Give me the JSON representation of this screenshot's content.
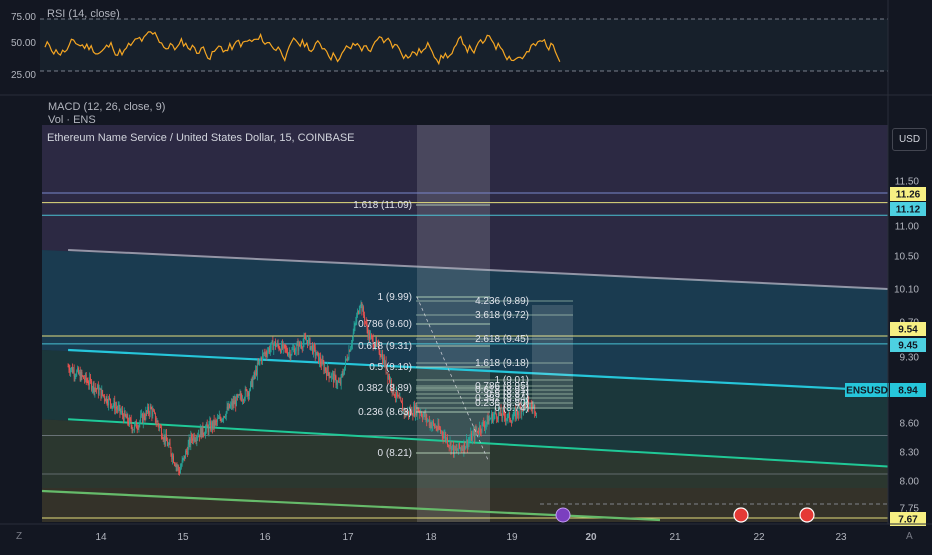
{
  "rsi_pane": {
    "label": "RSI (14, close)",
    "ticks": [
      "75.00",
      "50.00",
      "25.00"
    ]
  },
  "indicators": {
    "macd_label": "MACD (12, 26, close, 9)",
    "vol_label": "Vol · ENS"
  },
  "main_pane": {
    "title": "Ethereum Name Service / United States Dollar, 15, COINBASE",
    "currency_button": "USD",
    "corner_left": "Z",
    "corner_right": "A"
  },
  "price_axis": {
    "ticks": [
      "11.50",
      "11.00",
      "10.50",
      "10.10",
      "9.70",
      "9.30",
      "8.60",
      "8.30",
      "8.00",
      "7.75"
    ],
    "tags": [
      {
        "text": "11.26",
        "bg": "#f7f083",
        "fg": "#131722"
      },
      {
        "text": "11.12",
        "bg": "#4dd0e1",
        "fg": "#131722"
      },
      {
        "text": "9.54",
        "bg": "#f7f083",
        "fg": "#131722"
      },
      {
        "text": "9.45",
        "bg": "#4dd0e1",
        "fg": "#131722"
      },
      {
        "text": "8.94",
        "bg": "#26c6da",
        "fg": "#131722"
      },
      {
        "text": "7.67",
        "bg": "#f7f083",
        "fg": "#131722"
      }
    ],
    "symbol_tag": "ENSUSD"
  },
  "time_axis": {
    "ticks": [
      "14",
      "15",
      "16",
      "17",
      "18",
      "19",
      "20",
      "21",
      "22",
      "23"
    ]
  },
  "fib_retracement": [
    "1.618 (11.09)",
    "1 (9.99)",
    "0.786 (9.60)",
    "0.618 (9.31)",
    "0.5 (9.10)",
    "0.382 (8.89)",
    "0.236 (8.63)",
    "0 (8.21)"
  ],
  "fib_extension": [
    "4.236 (9.89)",
    "3.618 (9.72)",
    "2.618 (9.45)",
    "1.618 (9.18)",
    "1 (9.01)",
    "0.786 (8.95)",
    "0.618 (8.91)",
    "0.5 (8.87)",
    "0.382 (8.84)",
    "0.236 (8.80)",
    "0 (8.74)"
  ],
  "colors": {
    "background": "#131722",
    "up_candle": "#26a69a",
    "down_candle": "#ef5350",
    "rsi_line": "#f5a623",
    "channel_cyan": "#26c6da",
    "channel_green": "#20c997",
    "fib_line": "#c8e6c9",
    "yellow_level": "#f7f083"
  },
  "chart_data": {
    "type": "candlestick",
    "title": "Ethereum Name Service / United States Dollar, 15, COINBASE",
    "symbol": "ENSUSD",
    "last_price": 8.94,
    "x_ticks": [
      "14",
      "15",
      "16",
      "17",
      "18",
      "19",
      "20",
      "21",
      "22",
      "23"
    ],
    "y_ticks": [
      11.5,
      11.0,
      10.5,
      10.1,
      9.7,
      9.3,
      8.6,
      8.3,
      8.0,
      7.75
    ],
    "ylim": [
      7.65,
      12.5
    ],
    "price_path": [
      {
        "day": 13.6,
        "price": 9.2
      },
      {
        "day": 13.9,
        "price": 9.0
      },
      {
        "day": 14.2,
        "price": 8.75
      },
      {
        "day": 14.4,
        "price": 8.55
      },
      {
        "day": 14.6,
        "price": 8.75
      },
      {
        "day": 14.8,
        "price": 8.4
      },
      {
        "day": 14.95,
        "price": 8.1
      },
      {
        "day": 15.1,
        "price": 8.45
      },
      {
        "day": 15.4,
        "price": 8.6
      },
      {
        "day": 15.6,
        "price": 8.8
      },
      {
        "day": 15.8,
        "price": 8.95
      },
      {
        "day": 15.95,
        "price": 9.3
      },
      {
        "day": 16.1,
        "price": 9.45
      },
      {
        "day": 16.3,
        "price": 9.35
      },
      {
        "day": 16.5,
        "price": 9.5
      },
      {
        "day": 16.7,
        "price": 9.2
      },
      {
        "day": 16.9,
        "price": 9.0
      },
      {
        "day": 17.05,
        "price": 9.5
      },
      {
        "day": 17.15,
        "price": 9.95
      },
      {
        "day": 17.25,
        "price": 9.55
      },
      {
        "day": 17.4,
        "price": 9.35
      },
      {
        "day": 17.55,
        "price": 8.95
      },
      {
        "day": 17.7,
        "price": 8.7
      },
      {
        "day": 17.85,
        "price": 8.75
      },
      {
        "day": 18.0,
        "price": 8.6
      },
      {
        "day": 18.15,
        "price": 8.5
      },
      {
        "day": 18.3,
        "price": 8.3
      },
      {
        "day": 18.45,
        "price": 8.4
      },
      {
        "day": 18.6,
        "price": 8.55
      },
      {
        "day": 18.8,
        "price": 8.7
      },
      {
        "day": 19.0,
        "price": 8.65
      },
      {
        "day": 19.15,
        "price": 8.8
      },
      {
        "day": 19.3,
        "price": 8.75
      }
    ],
    "horizontal_levels": [
      11.26,
      11.12,
      9.54,
      9.45,
      8.47,
      7.67
    ],
    "channel_lines": [
      {
        "name": "upper",
        "from": [
          13.6,
          10.6
        ],
        "to": [
          23.45,
          10.1
        ]
      },
      {
        "name": "middle",
        "from": [
          13.6,
          9.38
        ],
        "to": [
          23.45,
          8.94
        ]
      },
      {
        "name": "lower",
        "from": [
          13.6,
          8.64
        ],
        "to": [
          23.45,
          8.15
        ]
      }
    ],
    "rsi": {
      "ylim": [
        0,
        100
      ],
      "levels": [
        70,
        30
      ],
      "ticks": [
        75,
        50,
        25
      ]
    }
  }
}
